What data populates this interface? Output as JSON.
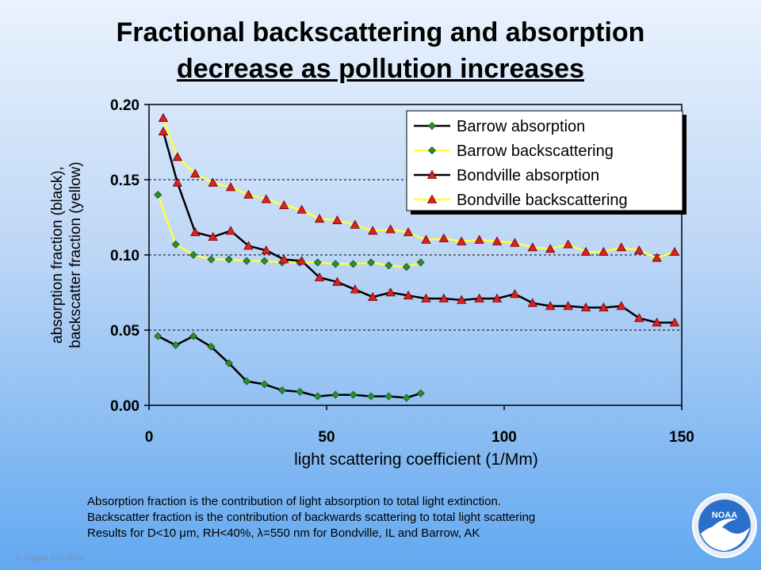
{
  "slide": {
    "title_line1": "Fractional backscattering and absorption",
    "title_line2": "decrease as pollution increases",
    "notes": [
      "Absorption fraction is the contribution of light absorption to total light extinction.",
      "Backscatter fraction is the contribution of backwards scattering to total light scattering",
      "Results for D<10 μm, RH<40%, λ=550 nm for Bondville, IL and Barrow, AK"
    ],
    "credit": "J. Ogren  2/2/2016",
    "logo_text": "NOAA"
  },
  "chart_data": {
    "type": "line",
    "title": "",
    "xlabel": "light scattering coefficient (1/Mm)",
    "ylabel": [
      "absorption fraction (black),",
      "backscatter fraction (yellow)"
    ],
    "xlim": [
      0,
      150
    ],
    "ylim": [
      0,
      0.2
    ],
    "xticks": [
      0,
      50,
      100,
      150
    ],
    "yticks": [
      0.0,
      0.05,
      0.1,
      0.15,
      0.2
    ],
    "ytick_labels": [
      "0.00",
      "0.05",
      "0.10",
      "0.15",
      "0.20"
    ],
    "grid": "horizontal dashed",
    "legend_position": "top-right",
    "series": [
      {
        "name": "Barrow absorption",
        "line_color": "#000000",
        "marker": "diamond",
        "marker_color": "#2e8b2e",
        "x": [
          2.5,
          7.5,
          12.5,
          17.5,
          22.5,
          27.5,
          32.5,
          37.5,
          42.5,
          47.5,
          52.5,
          57.5,
          62.5,
          67.5,
          72.5,
          76.5
        ],
        "y": [
          0.046,
          0.04,
          0.046,
          0.039,
          0.028,
          0.016,
          0.014,
          0.01,
          0.009,
          0.006,
          0.007,
          0.007,
          0.006,
          0.006,
          0.005,
          0.008
        ]
      },
      {
        "name": "Barrow backscattering",
        "line_color": "#ffff40",
        "marker": "diamond",
        "marker_color": "#2e8b2e",
        "x": [
          2.5,
          7.5,
          12.5,
          17.5,
          22.5,
          27.5,
          32.5,
          37.5,
          42.5,
          47.5,
          52.5,
          57.5,
          62.5,
          67.5,
          72.5,
          76.5
        ],
        "y": [
          0.14,
          0.107,
          0.1,
          0.097,
          0.097,
          0.096,
          0.096,
          0.095,
          0.095,
          0.095,
          0.094,
          0.094,
          0.095,
          0.093,
          0.092,
          0.095
        ]
      },
      {
        "name": "Bondville absorption",
        "line_color": "#000000",
        "marker": "triangle",
        "marker_color": "#e02020",
        "x": [
          4,
          8,
          13,
          18,
          23,
          28,
          33,
          38,
          43,
          48,
          53,
          58,
          63,
          68,
          73,
          78,
          83,
          88,
          93,
          98,
          103,
          108,
          113,
          118,
          123,
          128,
          133,
          138,
          143,
          148
        ],
        "y": [
          0.182,
          0.148,
          0.115,
          0.112,
          0.116,
          0.106,
          0.103,
          0.097,
          0.096,
          0.085,
          0.082,
          0.077,
          0.072,
          0.075,
          0.073,
          0.071,
          0.071,
          0.07,
          0.071,
          0.071,
          0.074,
          0.068,
          0.066,
          0.066,
          0.065,
          0.065,
          0.066,
          0.058,
          0.055,
          0.055
        ]
      },
      {
        "name": "Bondville backscattering",
        "line_color": "#ffff40",
        "marker": "triangle",
        "marker_color": "#e02020",
        "x": [
          4,
          8,
          13,
          18,
          23,
          28,
          33,
          38,
          43,
          48,
          53,
          58,
          63,
          68,
          73,
          78,
          83,
          88,
          93,
          98,
          103,
          108,
          113,
          118,
          123,
          128,
          133,
          138,
          143,
          148
        ],
        "y": [
          0.191,
          0.165,
          0.154,
          0.148,
          0.145,
          0.14,
          0.137,
          0.133,
          0.13,
          0.124,
          0.123,
          0.12,
          0.116,
          0.117,
          0.115,
          0.11,
          0.111,
          0.109,
          0.11,
          0.109,
          0.108,
          0.105,
          0.104,
          0.107,
          0.102,
          0.102,
          0.105,
          0.103,
          0.098,
          0.102
        ]
      }
    ]
  }
}
